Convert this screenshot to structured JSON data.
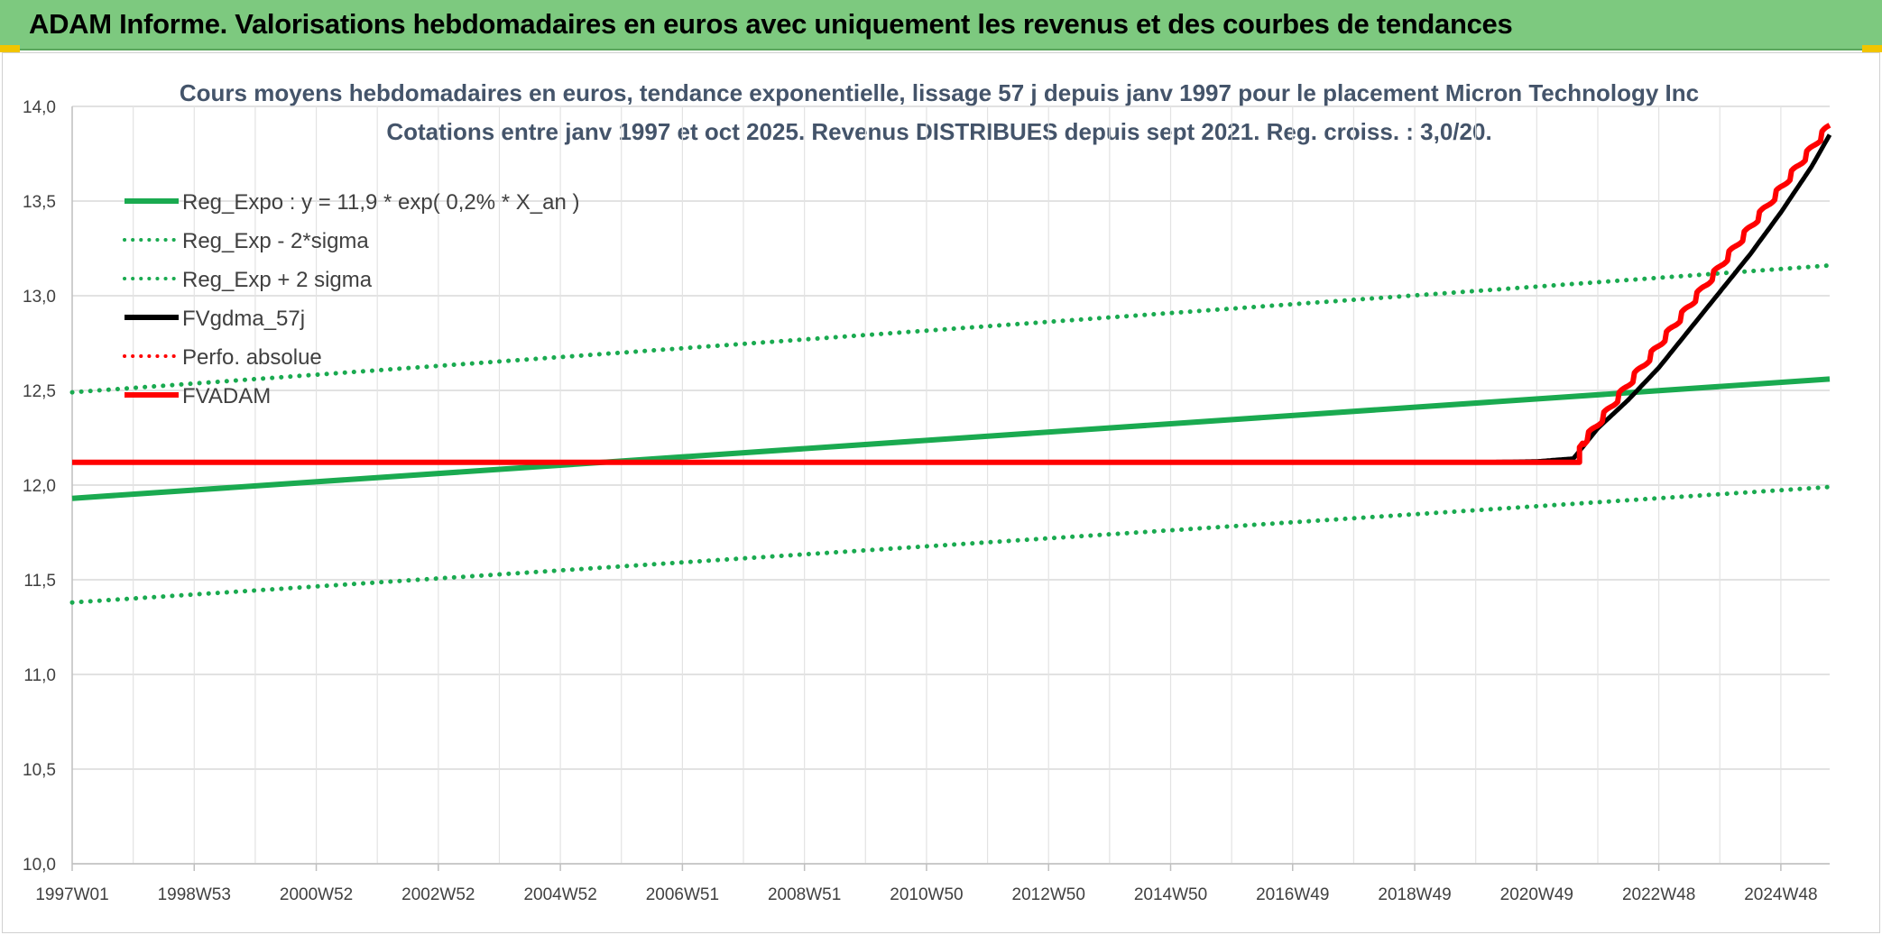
{
  "banner": {
    "title": "ADAM Informe. Valorisations hebdomadaires en euros avec uniquement les revenus et des courbes de tendances",
    "color": "#7dc97f"
  },
  "chart_data": {
    "type": "line",
    "title": "Cours moyens hebdomadaires en euros, tendance exponentielle, lissage 57 j depuis janv 1997 pour le placement Micron Technology Inc",
    "subtitle": "Cotations entre janv 1997 et oct 2025. Revenus DISTRIBUES depuis sept 2021. Reg. croiss. : 3,0/20.",
    "xlabel": "",
    "ylabel": "",
    "ylim": [
      10.0,
      14.0
    ],
    "xlim": [
      1997.0,
      2025.8
    ],
    "grid": true,
    "legend_position": "top-left",
    "y_ticks": [
      "10,0",
      "10,5",
      "11,0",
      "11,5",
      "12,0",
      "12,5",
      "13,0",
      "13,5",
      "14,0"
    ],
    "y_tick_values": [
      10.0,
      10.5,
      11.0,
      11.5,
      12.0,
      12.5,
      13.0,
      13.5,
      14.0
    ],
    "x_ticks": [
      "1997W01",
      "1998W53",
      "2000W52",
      "2002W52",
      "2004W52",
      "2006W51",
      "2008W51",
      "2010W50",
      "2012W50",
      "2014W50",
      "2016W49",
      "2018W49",
      "2020W49",
      "2022W48",
      "2024W48"
    ],
    "x_tick_values": [
      1997.0,
      1999.0,
      2001.0,
      2003.0,
      2005.0,
      2007.0,
      2009.0,
      2011.0,
      2013.0,
      2015.0,
      2017.0,
      2019.0,
      2021.0,
      2023.0,
      2025.0
    ],
    "series": [
      {
        "name": "Reg_Expo : y = 11,9 * exp( 0,2% *  X_an )",
        "color": "#1aaa50",
        "style": "solid",
        "x": [
          1997.0,
          2025.8
        ],
        "y": [
          11.93,
          12.56
        ]
      },
      {
        "name": "Reg_Exp - 2*sigma",
        "color": "#1aaa50",
        "style": "dotted",
        "x": [
          1997.0,
          2025.8
        ],
        "y": [
          11.38,
          11.99
        ]
      },
      {
        "name": "Reg_Exp + 2 sigma",
        "color": "#1aaa50",
        "style": "dotted",
        "x": [
          1997.0,
          2025.8
        ],
        "y": [
          12.49,
          13.16
        ]
      },
      {
        "name": "FVgdma_57j",
        "color": "#000000",
        "style": "solid",
        "x": [
          1997.0,
          2020.0,
          2021.0,
          2021.6,
          2021.75,
          2022.0,
          2022.5,
          2023.0,
          2023.5,
          2024.0,
          2024.5,
          2025.0,
          2025.5,
          2025.8
        ],
        "y": [
          12.12,
          12.12,
          12.125,
          12.14,
          12.2,
          12.3,
          12.45,
          12.62,
          12.82,
          13.02,
          13.22,
          13.44,
          13.68,
          13.85
        ]
      },
      {
        "name": "Perfo. absolue",
        "color": "#ff0000",
        "style": "dotted",
        "x": [],
        "y": []
      },
      {
        "name": "FVADAM",
        "color": "#ff0000",
        "style": "solid",
        "x": [
          1997.0,
          2021.7,
          2021.7,
          2025.8
        ],
        "y": [
          12.12,
          12.12,
          12.2,
          13.9
        ]
      }
    ]
  }
}
